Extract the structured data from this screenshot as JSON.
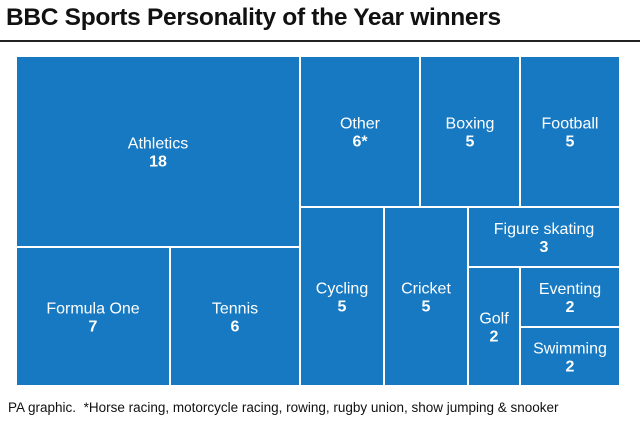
{
  "title": "BBC Sports Personality of the Year winners",
  "footnote": {
    "source": "PA graphic.",
    "note": "*Horse racing, motorcycle racing, rowing, rugby union, show jumping & snooker"
  },
  "colors": {
    "tile_fill": "#1679c2",
    "tile_border": "#ffffff",
    "text": "#ffffff"
  },
  "chart_data": {
    "type": "treemap",
    "title": "BBC Sports Personality of the Year winners",
    "items": [
      {
        "name": "Athletics",
        "value": 18,
        "value_label": "18"
      },
      {
        "name": "Formula One",
        "value": 7,
        "value_label": "7"
      },
      {
        "name": "Tennis",
        "value": 6,
        "value_label": "6"
      },
      {
        "name": "Other",
        "value": 6,
        "value_label": "6*"
      },
      {
        "name": "Boxing",
        "value": 5,
        "value_label": "5"
      },
      {
        "name": "Football",
        "value": 5,
        "value_label": "5"
      },
      {
        "name": "Cycling",
        "value": 5,
        "value_label": "5"
      },
      {
        "name": "Cricket",
        "value": 5,
        "value_label": "5"
      },
      {
        "name": "Figure skating",
        "value": 3,
        "value_label": "3"
      },
      {
        "name": "Golf",
        "value": 2,
        "value_label": "2"
      },
      {
        "name": "Eventing",
        "value": 2,
        "value_label": "2"
      },
      {
        "name": "Swimming",
        "value": 2,
        "value_label": "2"
      }
    ]
  }
}
